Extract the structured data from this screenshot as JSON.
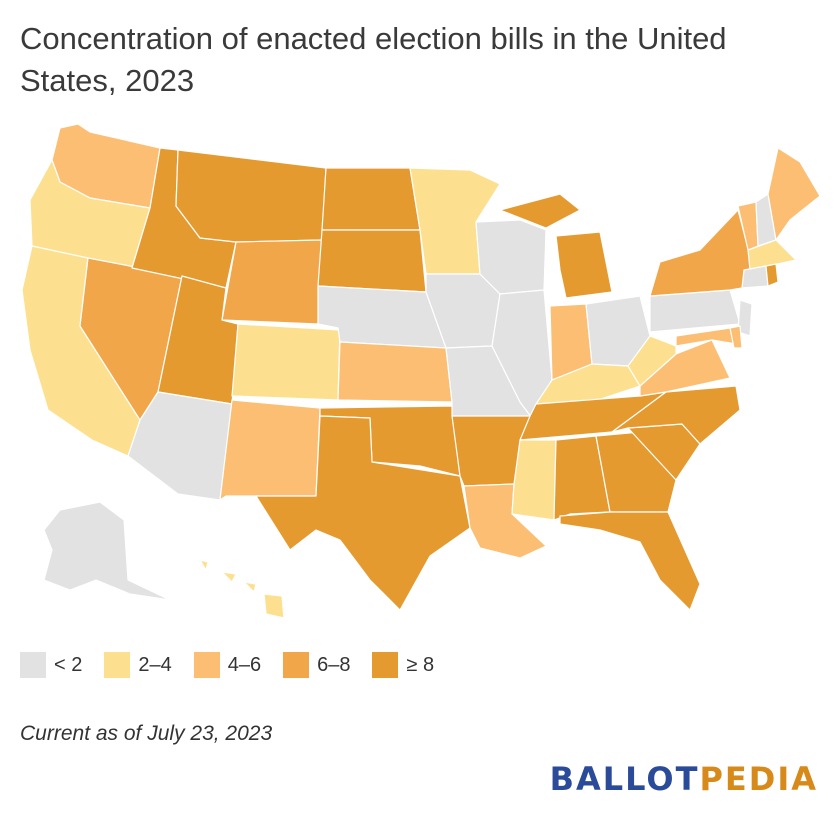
{
  "title": "Concentration of enacted election bills in the United States, 2023",
  "colors": {
    "lt2": "#e2e2e2",
    "2to4": "#fde08f",
    "4to6": "#fbbe73",
    "6to8": "#f1a649",
    "ge8": "#e59a30"
  },
  "legend": [
    {
      "label": "< 2",
      "key": "lt2"
    },
    {
      "label": "2–4",
      "key": "2to4"
    },
    {
      "label": "4–6",
      "key": "4to6"
    },
    {
      "label": "6–8",
      "key": "6to8"
    },
    {
      "label": "≥ 8",
      "key": "ge8"
    }
  ],
  "states": {
    "WA": "4to6",
    "OR": "2to4",
    "CA": "2to4",
    "NV": "6to8",
    "ID": "ge8",
    "MT": "ge8",
    "WY": "6to8",
    "UT": "ge8",
    "AZ": "lt2",
    "CO": "2to4",
    "NM": "4to6",
    "ND": "ge8",
    "SD": "ge8",
    "NE": "lt2",
    "KS": "4to6",
    "OK": "ge8",
    "TX": "ge8",
    "MN": "2to4",
    "IA": "lt2",
    "MO": "lt2",
    "AR": "ge8",
    "LA": "4to6",
    "WI": "lt2",
    "IL": "lt2",
    "MI": "ge8",
    "IN": "4to6",
    "OH": "lt2",
    "KY": "2to4",
    "TN": "ge8",
    "MS": "2to4",
    "AL": "ge8",
    "GA": "ge8",
    "FL": "ge8",
    "SC": "ge8",
    "NC": "ge8",
    "VA": "4to6",
    "WV": "2to4",
    "PA": "lt2",
    "NY": "6to8",
    "VT": "4to6",
    "NH": "lt2",
    "ME": "4to6",
    "MA": "2to4",
    "RI": "ge8",
    "CT": "lt2",
    "NJ": "lt2",
    "DE": "4to6",
    "MD": "4to6",
    "AK": "lt2",
    "HI": "2to4"
  },
  "note": "Current as of July 23, 2023",
  "logo": {
    "part1": "BALLOT",
    "part2": "PEDIA"
  }
}
